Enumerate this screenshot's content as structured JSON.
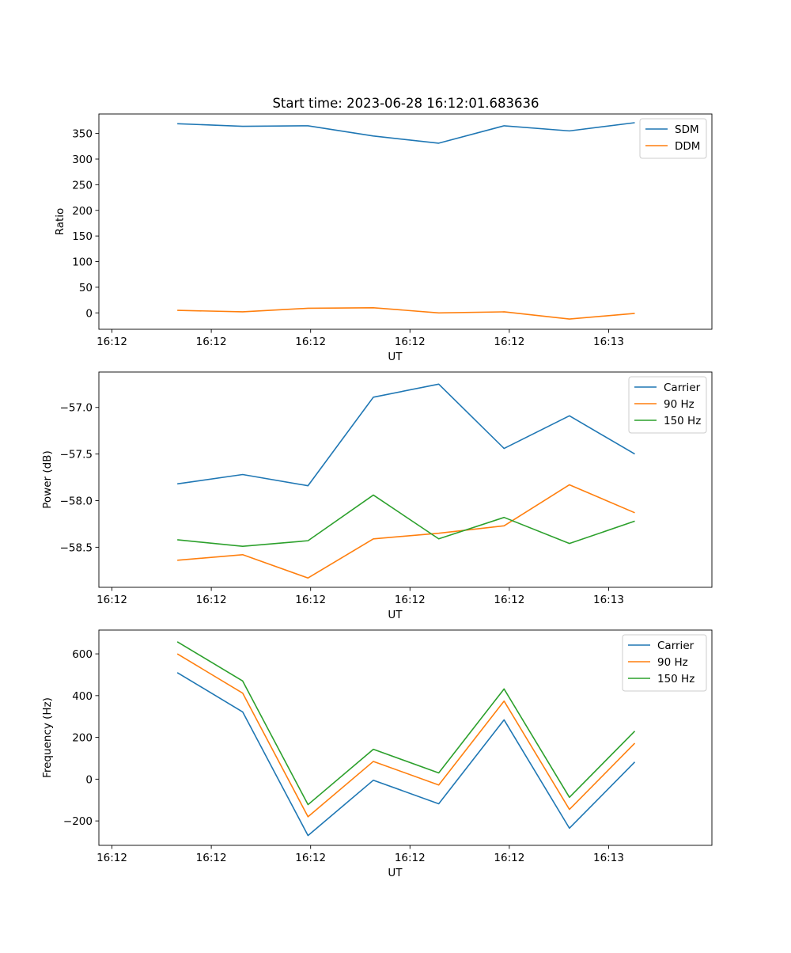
{
  "figure_title": "Start time: 2023-06-28 16:12:01.683636",
  "colors": {
    "blue": "#1f77b4",
    "orange": "#ff7f0e",
    "green": "#2ca02c"
  },
  "chart_data": [
    {
      "type": "line",
      "title": "Start time: 2023-06-28 16:12:01.683636",
      "xlabel": "UT",
      "ylabel": "Ratio",
      "x": [
        1,
        2,
        3,
        4,
        5,
        6,
        7,
        8
      ],
      "xlim": [
        -0.2,
        9.18
      ],
      "xticks": [
        {
          "v": 0,
          "label": "16:12"
        },
        {
          "v": 1.52,
          "label": "16:12"
        },
        {
          "v": 3.04,
          "label": "16:12"
        },
        {
          "v": 4.56,
          "label": "16:12"
        },
        {
          "v": 6.08,
          "label": "16:12"
        },
        {
          "v": 7.6,
          "label": "16:13"
        }
      ],
      "ylim": [
        -32,
        388
      ],
      "yticks": [
        {
          "v": 0,
          "label": "0"
        },
        {
          "v": 50,
          "label": "50"
        },
        {
          "v": 100,
          "label": "100"
        },
        {
          "v": 150,
          "label": "150"
        },
        {
          "v": 200,
          "label": "200"
        },
        {
          "v": 250,
          "label": "250"
        },
        {
          "v": 300,
          "label": "300"
        },
        {
          "v": 350,
          "label": "350"
        }
      ],
      "grid": false,
      "legend_position": "top-right",
      "series": [
        {
          "name": "SDM",
          "color": "#1f77b4",
          "values": [
            369,
            364,
            365,
            345,
            331,
            365,
            355,
            371
          ]
        },
        {
          "name": "DDM",
          "color": "#ff7f0e",
          "values": [
            5,
            2,
            9,
            10,
            0,
            2,
            -12,
            -1
          ]
        }
      ]
    },
    {
      "type": "line",
      "title": "",
      "xlabel": "UT",
      "ylabel": "Power (dB)",
      "x": [
        1,
        2,
        3,
        4,
        5,
        6,
        7,
        8
      ],
      "xlim": [
        -0.2,
        9.18
      ],
      "xticks": [
        {
          "v": 0,
          "label": "16:12"
        },
        {
          "v": 1.52,
          "label": "16:12"
        },
        {
          "v": 3.04,
          "label": "16:12"
        },
        {
          "v": 4.56,
          "label": "16:12"
        },
        {
          "v": 6.08,
          "label": "16:12"
        },
        {
          "v": 7.6,
          "label": "16:13"
        }
      ],
      "ylim": [
        -58.93,
        -56.62
      ],
      "yticks": [
        {
          "v": -58.5,
          "label": "−58.5"
        },
        {
          "v": -58.0,
          "label": "−58.0"
        },
        {
          "v": -57.5,
          "label": "−57.5"
        },
        {
          "v": -57.0,
          "label": "−57.0"
        }
      ],
      "grid": false,
      "legend_position": "top-right",
      "series": [
        {
          "name": "Carrier",
          "color": "#1f77b4",
          "values": [
            -57.82,
            -57.72,
            -57.84,
            -56.89,
            -56.75,
            -57.44,
            -57.09,
            -57.5
          ]
        },
        {
          "name": "90 Hz",
          "color": "#ff7f0e",
          "values": [
            -58.64,
            -58.58,
            -58.83,
            -58.41,
            -58.35,
            -58.27,
            -57.83,
            -58.13
          ]
        },
        {
          "name": "150 Hz",
          "color": "#2ca02c",
          "values": [
            -58.42,
            -58.49,
            -58.43,
            -57.94,
            -58.41,
            -58.18,
            -58.46,
            -58.22
          ]
        }
      ]
    },
    {
      "type": "line",
      "title": "",
      "xlabel": "UT",
      "ylabel": "Frequency (Hz)",
      "x": [
        1,
        2,
        3,
        4,
        5,
        6,
        7,
        8
      ],
      "xlim": [
        -0.2,
        9.18
      ],
      "xticks": [
        {
          "v": 0,
          "label": "16:12"
        },
        {
          "v": 1.52,
          "label": "16:12"
        },
        {
          "v": 3.04,
          "label": "16:12"
        },
        {
          "v": 4.56,
          "label": "16:12"
        },
        {
          "v": 6.08,
          "label": "16:12"
        },
        {
          "v": 7.6,
          "label": "16:13"
        }
      ],
      "ylim": [
        -317,
        714
      ],
      "yticks": [
        {
          "v": -200,
          "label": "−200"
        },
        {
          "v": 0,
          "label": "0"
        },
        {
          "v": 200,
          "label": "200"
        },
        {
          "v": 400,
          "label": "400"
        },
        {
          "v": 600,
          "label": "600"
        }
      ],
      "grid": false,
      "legend_position": "top-right",
      "series": [
        {
          "name": "Carrier",
          "color": "#1f77b4",
          "values": [
            510,
            322,
            -270,
            -5,
            -118,
            284,
            -235,
            82
          ]
        },
        {
          "name": "90 Hz",
          "color": "#ff7f0e",
          "values": [
            600,
            412,
            -180,
            85,
            -28,
            374,
            -145,
            172
          ]
        },
        {
          "name": "150 Hz",
          "color": "#2ca02c",
          "values": [
            658,
            470,
            -122,
            143,
            30,
            432,
            -87,
            230
          ]
        }
      ]
    }
  ]
}
